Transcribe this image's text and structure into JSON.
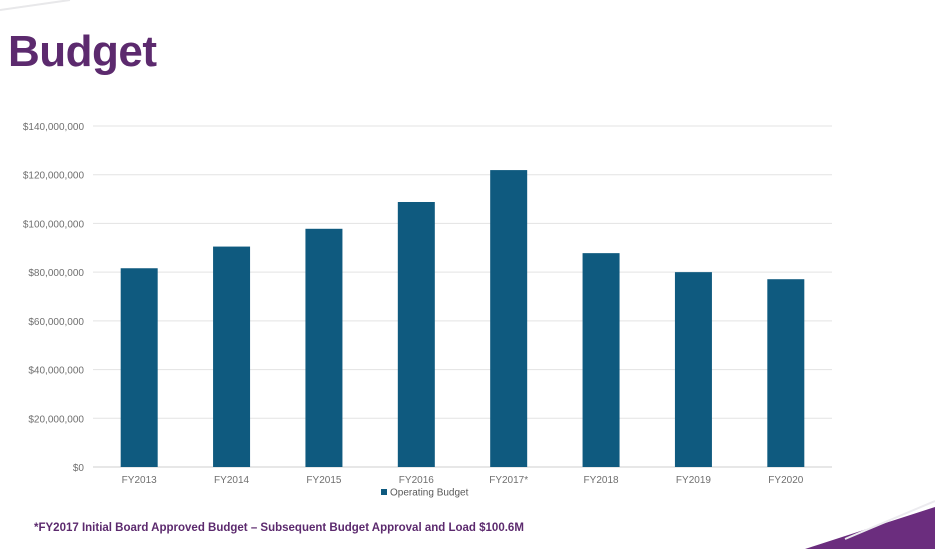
{
  "slide": {
    "title": "Budget",
    "footnote": "*FY2017 Initial Board Approved Budget – Subsequent Budget Approval and Load $100.6M",
    "accent_color": "#5c2a6e"
  },
  "chart_data": {
    "type": "bar",
    "categories": [
      "FY2013",
      "FY2014",
      "FY2015",
      "FY2016",
      "FY2017*",
      "FY2018",
      "FY2019",
      "FY2020"
    ],
    "series": [
      {
        "name": "Operating Budget",
        "color": "#0f5a7f",
        "values": [
          81600000,
          90500000,
          97800000,
          108800000,
          121900000,
          87800000,
          80000000,
          77100000
        ]
      }
    ],
    "yticks": [
      "$0",
      "$20,000,000",
      "$40,000,000",
      "$60,000,000",
      "$80,000,000",
      "$100,000,000",
      "$120,000,000",
      "$140,000,000"
    ],
    "ylim": [
      0,
      140000000
    ],
    "grid": true,
    "legend": "bottom-center"
  }
}
